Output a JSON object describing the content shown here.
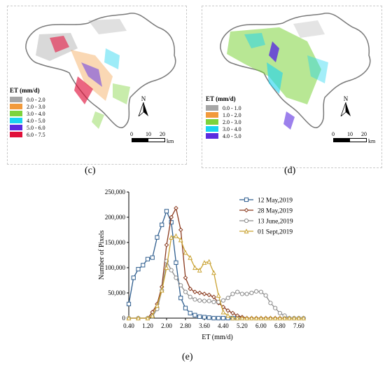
{
  "panel_c": {
    "caption": "(c)",
    "legend_title": "ET (mm/d)",
    "legend": [
      {
        "label": "0.0 - 2.0",
        "color": "#a6a6a6"
      },
      {
        "label": "2.0 - 3.0",
        "color": "#f29a3b"
      },
      {
        "label": "3.0 - 4.0",
        "color": "#7dd33c"
      },
      {
        "label": "4.0 - 5.0",
        "color": "#1ad4f0"
      },
      {
        "label": "5.0 - 6.0",
        "color": "#5a2ce0"
      },
      {
        "label": "6.0 - 7.5",
        "color": "#e0103a"
      }
    ],
    "north": "N",
    "scale_labels": [
      "0",
      "10",
      "20"
    ],
    "scale_unit": "km"
  },
  "panel_d": {
    "caption": "(d)",
    "legend_title": "ET (mm/d)",
    "legend": [
      {
        "label": "0.0 - 1.0",
        "color": "#a6a6a6"
      },
      {
        "label": "1.0 - 2.0",
        "color": "#f29a3b"
      },
      {
        "label": "2.0 - 3.0",
        "color": "#7dd33c"
      },
      {
        "label": "3.0 - 4.0",
        "color": "#1ad4f0"
      },
      {
        "label": "4.0 - 5.0",
        "color": "#5a2ce0"
      }
    ],
    "north": "N",
    "scale_labels": [
      "0",
      "10",
      "20"
    ],
    "scale_unit": "km"
  },
  "panel_e": {
    "caption": "(e)"
  },
  "chart_data": {
    "type": "line",
    "title": "",
    "xlabel": "ET (mm/d)",
    "ylabel": "Number of Pixels",
    "xlim": [
      0.4,
      7.9
    ],
    "ylim": [
      0,
      250000
    ],
    "xticks": [
      0.4,
      1.2,
      2.0,
      2.8,
      3.6,
      4.4,
      5.2,
      6.0,
      6.8,
      7.6
    ],
    "xtick_labels": [
      "0.40",
      "1.20",
      "2.00",
      "2.80",
      "3.60",
      "4.40",
      "5.20",
      "6.00",
      "6.80",
      "7.60"
    ],
    "yticks": [
      0,
      50000,
      100000,
      150000,
      200000,
      250000
    ],
    "ytick_labels": [
      "0",
      "50,000",
      "100,000",
      "150,000",
      "200,000",
      "250,000"
    ],
    "legend_position": "top-right",
    "series": [
      {
        "name": "12 May,2019",
        "color": "#2e5d8e",
        "marker": "square",
        "x": [
          0.4,
          0.6,
          0.8,
          1.0,
          1.2,
          1.4,
          1.6,
          1.8,
          2.0,
          2.2,
          2.4,
          2.6,
          2.8,
          3.0,
          3.2,
          3.4,
          3.6,
          3.8,
          4.0,
          4.2,
          4.4,
          4.6,
          4.8,
          5.0
        ],
        "y": [
          28000,
          80000,
          97000,
          105000,
          117000,
          120000,
          160000,
          185000,
          212000,
          190000,
          110000,
          40000,
          20000,
          10000,
          6000,
          3000,
          2000,
          1000,
          0,
          0,
          0,
          0,
          0,
          0
        ]
      },
      {
        "name": "28 May,2019",
        "color": "#8a3a1e",
        "marker": "diamond",
        "x": [
          0.4,
          0.8,
          1.2,
          1.4,
          1.6,
          1.8,
          2.0,
          2.2,
          2.4,
          2.6,
          2.8,
          3.0,
          3.2,
          3.4,
          3.6,
          3.8,
          4.0,
          4.2,
          4.4,
          4.6,
          4.8,
          5.0,
          5.2,
          5.4,
          5.6,
          5.8,
          6.0,
          6.2,
          6.4,
          6.6,
          6.8,
          7.0,
          7.2,
          7.4,
          7.6,
          7.8
        ],
        "y": [
          0,
          0,
          0,
          12000,
          28000,
          62000,
          145000,
          200000,
          218000,
          175000,
          80000,
          58000,
          52000,
          50000,
          48000,
          46000,
          42000,
          30000,
          22000,
          15000,
          10000,
          5000,
          2000,
          0,
          0,
          0,
          0,
          0,
          0,
          0,
          0,
          0,
          0,
          0,
          0,
          0
        ]
      },
      {
        "name": "13 June,2019",
        "color": "#8c8c8c",
        "marker": "circle",
        "x": [
          0.4,
          0.8,
          1.2,
          1.4,
          1.6,
          1.8,
          2.0,
          2.2,
          2.4,
          2.6,
          2.8,
          3.0,
          3.2,
          3.4,
          3.6,
          3.8,
          4.0,
          4.2,
          4.4,
          4.6,
          4.8,
          5.0,
          5.2,
          5.4,
          5.6,
          5.8,
          6.0,
          6.2,
          6.4,
          6.6,
          6.8,
          7.0,
          7.2,
          7.4,
          7.6,
          7.8
        ],
        "y": [
          0,
          0,
          0,
          3000,
          18000,
          55000,
          113000,
          95000,
          80000,
          65000,
          52000,
          42000,
          37000,
          35000,
          34000,
          34000,
          32000,
          32000,
          35000,
          40000,
          48000,
          52000,
          48000,
          48000,
          50000,
          53000,
          52000,
          45000,
          30000,
          20000,
          10000,
          5000,
          0,
          0,
          0,
          0
        ]
      },
      {
        "name": "01 Sept,2019",
        "color": "#c9a232",
        "marker": "triangle",
        "x": [
          0.4,
          0.8,
          1.2,
          1.4,
          1.6,
          1.8,
          2.0,
          2.2,
          2.4,
          2.6,
          2.8,
          3.0,
          3.2,
          3.4,
          3.6,
          3.8,
          4.0,
          4.2,
          4.4,
          4.6,
          4.8,
          5.0,
          5.2,
          5.4,
          5.6,
          5.8,
          6.0,
          6.2,
          6.4,
          6.6,
          6.8,
          7.0,
          7.2,
          7.4,
          7.6,
          7.8
        ],
        "y": [
          0,
          0,
          0,
          5000,
          25000,
          55000,
          100000,
          160000,
          163000,
          155000,
          130000,
          120000,
          100000,
          95000,
          110000,
          112000,
          90000,
          45000,
          12000,
          5000,
          0,
          0,
          0,
          0,
          0,
          0,
          0,
          0,
          0,
          0,
          0,
          0,
          0,
          0,
          0,
          0
        ]
      }
    ]
  }
}
